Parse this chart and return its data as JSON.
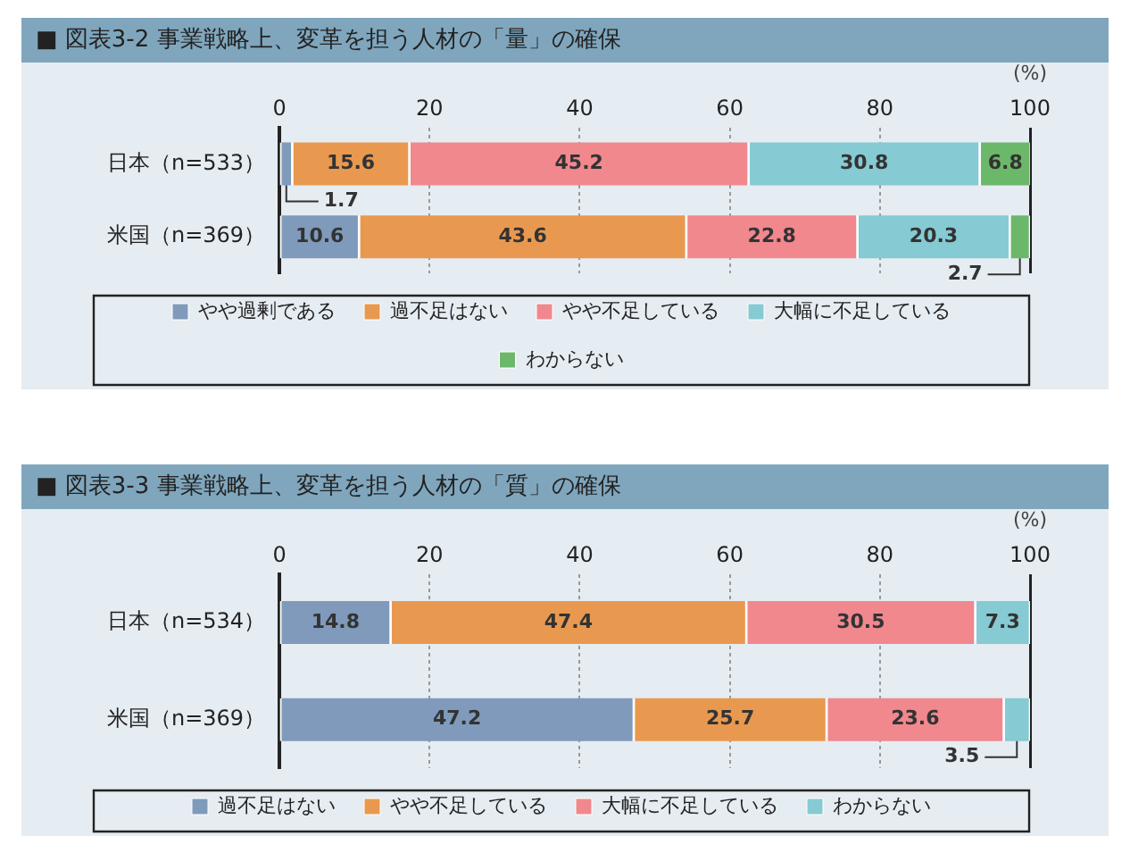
{
  "chart_data": [
    {
      "type": "bar",
      "orientation": "horizontal",
      "stacked": true,
      "title": "■ 図表3-2 事業戦略上、変革を担う人材の「量」の確保",
      "xlabel": "(%)",
      "categories": [
        "日本（n=533）",
        "米国（n=369）"
      ],
      "series": [
        {
          "name": "やや過剰である",
          "color": "#7f9abb",
          "values": [
            1.7,
            10.6
          ]
        },
        {
          "name": "過不足はない",
          "color": "#e9994f",
          "values": [
            15.6,
            43.6
          ]
        },
        {
          "name": "やや不足している",
          "color": "#f0888e",
          "values": [
            45.2,
            22.8
          ]
        },
        {
          "name": "大幅に不足している",
          "color": "#86cad3",
          "values": [
            30.8,
            20.3
          ]
        },
        {
          "name": "わからない",
          "color": "#6cb86a",
          "values": [
            6.8,
            2.7
          ]
        }
      ],
      "xlim": [
        0,
        100
      ],
      "xticks": [
        0,
        20,
        40,
        60,
        80,
        100
      ],
      "grid": "x",
      "legend": "bottom",
      "data_labels": true
    },
    {
      "type": "bar",
      "orientation": "horizontal",
      "stacked": true,
      "title": "■ 図表3-3 事業戦略上、変革を担う人材の「質」の確保",
      "xlabel": "(%)",
      "categories": [
        "日本（n=534）",
        "米国（n=369）"
      ],
      "series": [
        {
          "name": "過不足はない",
          "color": "#7f9abb",
          "values": [
            14.8,
            47.2
          ]
        },
        {
          "name": "やや不足している",
          "color": "#e9994f",
          "values": [
            47.4,
            25.7
          ]
        },
        {
          "name": "大幅に不足している",
          "color": "#f0888e",
          "values": [
            30.5,
            23.6
          ]
        },
        {
          "name": "わからない",
          "color": "#86cad3",
          "values": [
            7.3,
            3.5
          ]
        }
      ],
      "xlim": [
        0,
        100
      ],
      "xticks": [
        0,
        20,
        40,
        60,
        80,
        100
      ],
      "grid": "x",
      "legend": "bottom",
      "data_labels": true
    }
  ]
}
